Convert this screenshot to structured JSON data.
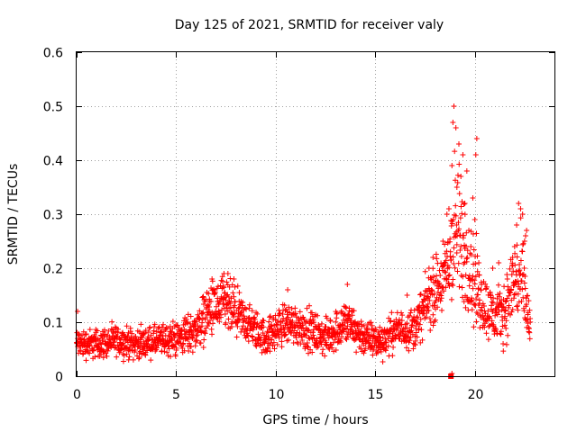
{
  "chart_data": {
    "type": "scatter",
    "title": "Day 125 of 2021, SRMTID for receiver valy",
    "xlabel": "GPS time / hours",
    "ylabel": "SRMTID / TECUs",
    "xlim": [
      0,
      24
    ],
    "ylim": [
      0,
      0.6
    ],
    "xticks": [
      "0",
      "5",
      "10",
      "15",
      "20"
    ],
    "xtick_values": [
      0,
      5,
      10,
      15,
      20
    ],
    "yticks": [
      "0",
      "0.1",
      "0.2",
      "0.3",
      "0.4",
      "0.5",
      "0.6"
    ],
    "ytick_values": [
      0,
      0.1,
      0.2,
      0.3,
      0.4,
      0.5,
      0.6
    ],
    "grid": true,
    "marker": "+",
    "color": "#ff0000",
    "gap_marker": {
      "x": 18.8,
      "y": 0.0
    },
    "series": [
      {
        "name": "SRMTID",
        "profile": [
          {
            "x": 0.0,
            "base": 0.06,
            "spread": 0.025
          },
          {
            "x": 1.0,
            "base": 0.06,
            "spread": 0.025
          },
          {
            "x": 2.0,
            "base": 0.065,
            "spread": 0.025
          },
          {
            "x": 3.0,
            "base": 0.06,
            "spread": 0.025
          },
          {
            "x": 4.0,
            "base": 0.065,
            "spread": 0.025
          },
          {
            "x": 5.0,
            "base": 0.07,
            "spread": 0.03
          },
          {
            "x": 6.0,
            "base": 0.085,
            "spread": 0.035
          },
          {
            "x": 6.6,
            "base": 0.12,
            "spread": 0.045
          },
          {
            "x": 7.5,
            "base": 0.13,
            "spread": 0.05
          },
          {
            "x": 8.5,
            "base": 0.1,
            "spread": 0.035
          },
          {
            "x": 9.5,
            "base": 0.07,
            "spread": 0.03
          },
          {
            "x": 10.5,
            "base": 0.1,
            "spread": 0.035
          },
          {
            "x": 11.5,
            "base": 0.09,
            "spread": 0.035
          },
          {
            "x": 12.5,
            "base": 0.07,
            "spread": 0.03
          },
          {
            "x": 13.5,
            "base": 0.1,
            "spread": 0.04
          },
          {
            "x": 14.5,
            "base": 0.07,
            "spread": 0.03
          },
          {
            "x": 15.3,
            "base": 0.065,
            "spread": 0.03
          },
          {
            "x": 16.0,
            "base": 0.085,
            "spread": 0.03
          },
          {
            "x": 17.0,
            "base": 0.09,
            "spread": 0.035
          },
          {
            "x": 17.8,
            "base": 0.15,
            "spread": 0.05
          },
          {
            "x": 18.5,
            "base": 0.18,
            "spread": 0.06
          },
          {
            "x": 19.0,
            "base": 0.27,
            "spread": 0.13
          },
          {
            "x": 19.6,
            "base": 0.22,
            "spread": 0.09
          },
          {
            "x": 20.0,
            "base": 0.17,
            "spread": 0.08
          },
          {
            "x": 20.5,
            "base": 0.13,
            "spread": 0.05
          },
          {
            "x": 21.0,
            "base": 0.11,
            "spread": 0.045
          },
          {
            "x": 21.5,
            "base": 0.12,
            "spread": 0.05
          },
          {
            "x": 22.0,
            "base": 0.18,
            "spread": 0.08
          },
          {
            "x": 22.4,
            "base": 0.17,
            "spread": 0.08
          },
          {
            "x": 22.8,
            "base": 0.08,
            "spread": 0.04
          }
        ],
        "points": [
          {
            "x": 18.95,
            "y": 0.5
          },
          {
            "x": 18.9,
            "y": 0.47
          },
          {
            "x": 19.05,
            "y": 0.46
          },
          {
            "x": 19.2,
            "y": 0.43
          },
          {
            "x": 19.4,
            "y": 0.41
          },
          {
            "x": 18.85,
            "y": 0.39
          },
          {
            "x": 19.3,
            "y": 0.37
          },
          {
            "x": 19.1,
            "y": 0.35
          },
          {
            "x": 19.6,
            "y": 0.38
          },
          {
            "x": 20.1,
            "y": 0.44
          },
          {
            "x": 20.05,
            "y": 0.41
          },
          {
            "x": 19.9,
            "y": 0.33
          },
          {
            "x": 20.0,
            "y": 0.29
          },
          {
            "x": 18.7,
            "y": 0.31
          },
          {
            "x": 18.6,
            "y": 0.3
          },
          {
            "x": 19.5,
            "y": 0.32
          },
          {
            "x": 19.7,
            "y": 0.27
          },
          {
            "x": 18.4,
            "y": 0.25
          },
          {
            "x": 19.8,
            "y": 0.24
          },
          {
            "x": 20.2,
            "y": 0.21
          },
          {
            "x": 22.2,
            "y": 0.32
          },
          {
            "x": 22.3,
            "y": 0.31
          },
          {
            "x": 22.4,
            "y": 0.3
          },
          {
            "x": 22.55,
            "y": 0.26
          },
          {
            "x": 22.6,
            "y": 0.27
          },
          {
            "x": 22.1,
            "y": 0.28
          },
          {
            "x": 22.0,
            "y": 0.24
          },
          {
            "x": 22.5,
            "y": 0.25
          },
          {
            "x": 21.9,
            "y": 0.22
          },
          {
            "x": 21.2,
            "y": 0.21
          },
          {
            "x": 20.9,
            "y": 0.2
          },
          {
            "x": 17.9,
            "y": 0.22
          },
          {
            "x": 17.7,
            "y": 0.2
          },
          {
            "x": 7.4,
            "y": 0.19
          },
          {
            "x": 7.6,
            "y": 0.19
          },
          {
            "x": 7.9,
            "y": 0.18
          },
          {
            "x": 6.8,
            "y": 0.18
          },
          {
            "x": 10.6,
            "y": 0.16
          },
          {
            "x": 13.6,
            "y": 0.17
          },
          {
            "x": 16.6,
            "y": 0.15
          },
          {
            "x": 0.05,
            "y": 0.12
          },
          {
            "x": 18.85,
            "y": 0.005
          }
        ]
      }
    ]
  }
}
